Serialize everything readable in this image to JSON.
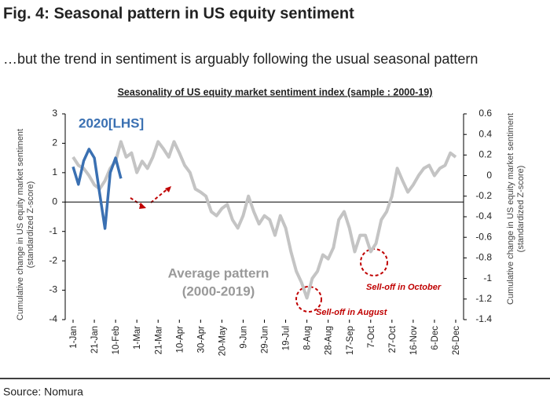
{
  "title": "Fig. 4: Seasonal pattern in US equity sentiment",
  "subtitle": "…but the trend in sentiment is arguably following the usual seasonal pattern",
  "source": "Source: Nomura",
  "chart_data": {
    "type": "line",
    "title": "Seasonality of US equity market sentiment index (sample : 2000-19)",
    "ylabel": [
      "Cumulative change in US equity market sentiment",
      "(standardized Z-score)"
    ],
    "y2label": [
      "Cumulative change in US equity market sentiment",
      "(standardized Z-score)"
    ],
    "categories": [
      "1-Jan",
      null,
      null,
      null,
      "21-Jan",
      null,
      null,
      null,
      "10-Feb",
      null,
      null,
      null,
      "1-Mar",
      null,
      null,
      null,
      "21-Mar",
      null,
      null,
      null,
      "10-Apr",
      null,
      null,
      null,
      "30-Apr",
      null,
      null,
      null,
      "20-May",
      null,
      null,
      null,
      "9-Jun",
      null,
      null,
      null,
      "29-Jun",
      null,
      null,
      null,
      "19-Jul",
      null,
      null,
      null,
      "8-Aug",
      null,
      null,
      null,
      "28-Aug",
      null,
      null,
      null,
      "17-Sep",
      null,
      null,
      null,
      "7-Oct",
      null,
      null,
      null,
      "27-Oct",
      null,
      null,
      null,
      "16-Nov",
      null,
      null,
      null,
      "6-Dec",
      null,
      null,
      null,
      "26-Dec"
    ],
    "series": [
      {
        "name": "Average pattern",
        "color": "#c4c4c4",
        "axis": "y2",
        "values": [
          0.18,
          0.1,
          0.07,
          0.0,
          -0.09,
          -0.13,
          -0.05,
          0.07,
          0.14,
          0.33,
          0.18,
          0.22,
          0.03,
          0.14,
          0.07,
          0.18,
          0.33,
          0.26,
          0.18,
          0.33,
          0.22,
          0.1,
          0.03,
          -0.13,
          -0.16,
          -0.2,
          -0.35,
          -0.39,
          -0.32,
          -0.28,
          -0.43,
          -0.51,
          -0.39,
          -0.2,
          -0.35,
          -0.47,
          -0.39,
          -0.43,
          -0.58,
          -0.39,
          -0.51,
          -0.74,
          -0.93,
          -1.04,
          -1.19,
          -1.0,
          -0.93,
          -0.77,
          -0.81,
          -0.7,
          -0.43,
          -0.35,
          -0.51,
          -0.74,
          -0.58,
          -0.58,
          -0.74,
          -0.66,
          -0.43,
          -0.35,
          -0.2,
          0.07,
          -0.05,
          -0.16,
          -0.09,
          0.0,
          0.07,
          0.1,
          0.0,
          0.07,
          0.1,
          0.22,
          0.18
        ]
      },
      {
        "name": "2020[LHS]",
        "color": "#3a70b2",
        "values": [
          1.2,
          0.6,
          1.4,
          1.8,
          1.5,
          0.3,
          -0.9,
          1.0,
          1.5,
          0.8,
          null,
          null,
          null,
          null,
          null,
          null,
          null,
          null,
          null,
          null,
          null,
          null,
          null,
          null,
          null,
          null,
          null,
          null,
          null,
          null,
          null,
          null,
          null,
          null,
          null,
          null,
          null,
          null,
          null,
          null,
          null,
          null,
          null,
          null,
          null,
          null,
          null,
          null,
          null,
          null,
          null,
          null,
          null,
          null,
          null,
          null,
          null,
          null,
          null,
          null,
          null,
          null,
          null,
          null,
          null,
          null,
          null,
          null,
          null,
          null,
          null,
          null,
          null
        ]
      }
    ],
    "annotations": [
      "(2000-2019)",
      "Sell-off in August",
      "Sell-off in October"
    ],
    "ylim": [
      -4,
      3
    ],
    "yticks": [
      -4,
      -3,
      -2,
      -1,
      0,
      1,
      2,
      3
    ],
    "y2lim": [
      -1.4,
      0.6
    ],
    "y2ticks": [
      -1.4,
      -1.2,
      -1,
      -0.8,
      -0.6,
      -0.4,
      -0.2,
      0,
      0.2,
      0.4,
      0.6
    ]
  }
}
